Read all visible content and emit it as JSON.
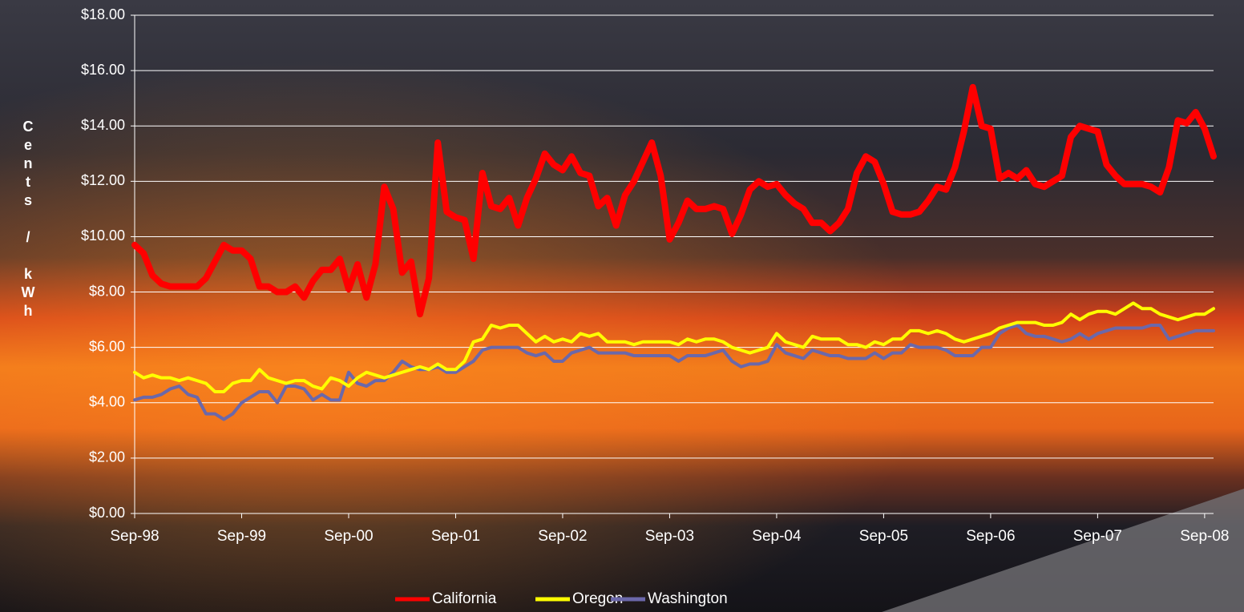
{
  "chart_data": {
    "type": "line",
    "y_label": "Cents / kWh",
    "categories": [
      "Sep-98",
      null,
      null,
      null,
      null,
      null,
      null,
      null,
      null,
      null,
      null,
      null,
      "Sep-99",
      null,
      null,
      null,
      null,
      null,
      null,
      null,
      null,
      null,
      null,
      null,
      "Sep-00",
      null,
      null,
      null,
      null,
      null,
      null,
      null,
      null,
      null,
      null,
      null,
      "Sep-01",
      null,
      null,
      null,
      null,
      null,
      null,
      null,
      null,
      null,
      null,
      null,
      "Sep-02",
      null,
      null,
      null,
      null,
      null,
      null,
      null,
      null,
      null,
      null,
      null,
      "Sep-03",
      null,
      null,
      null,
      null,
      null,
      null,
      null,
      null,
      null,
      null,
      null,
      "Sep-04",
      null,
      null,
      null,
      null,
      null,
      null,
      null,
      null,
      null,
      null,
      null,
      "Sep-05",
      null,
      null,
      null,
      null,
      null,
      null,
      null,
      null,
      null,
      null,
      null,
      "Sep-06",
      null,
      null,
      null,
      null,
      null,
      null,
      null,
      null,
      null,
      null,
      null,
      "Sep-07",
      null,
      null,
      null,
      null,
      null,
      null,
      null,
      null,
      null,
      null,
      null,
      "Sep-08",
      null
    ],
    "series": [
      {
        "name": "California",
        "color": "#ff0000",
        "width": 8,
        "values": [
          9.7,
          9.4,
          8.6,
          8.3,
          8.2,
          8.2,
          8.2,
          8.2,
          8.5,
          9.1,
          9.7,
          9.5,
          9.5,
          9.2,
          8.2,
          8.2,
          8.0,
          8.0,
          8.2,
          7.8,
          8.4,
          8.8,
          8.8,
          9.2,
          8.1,
          9.0,
          7.8,
          9.0,
          11.8,
          11.0,
          8.7,
          9.1,
          7.2,
          8.5,
          13.4,
          10.9,
          10.7,
          10.6,
          9.2,
          12.3,
          11.1,
          11.0,
          11.4,
          10.4,
          11.4,
          12.1,
          13.0,
          12.6,
          12.4,
          12.9,
          12.3,
          12.2,
          11.1,
          11.4,
          10.4,
          11.5,
          12.0,
          12.7,
          13.4,
          12.2,
          9.9,
          10.5,
          11.3,
          11.0,
          11.0,
          11.1,
          11.0,
          10.1,
          10.8,
          11.7,
          12.0,
          11.8,
          11.9,
          11.5,
          11.2,
          11.0,
          10.5,
          10.5,
          10.2,
          10.5,
          11.0,
          12.3,
          12.9,
          12.7,
          11.9,
          10.9,
          10.8,
          10.8,
          10.9,
          11.3,
          11.8,
          11.7,
          12.5,
          13.8,
          15.4,
          14.0,
          13.9,
          12.1,
          12.3,
          12.1,
          12.4,
          11.9,
          11.8,
          12.0,
          12.2,
          13.6,
          14.0,
          13.9,
          13.8,
          12.6,
          12.2,
          11.9,
          11.9,
          11.9,
          11.8,
          11.6,
          12.5,
          14.2,
          14.1,
          14.5,
          13.9,
          12.9
        ]
      },
      {
        "name": "Oregon",
        "color": "#ffff00",
        "width": 4,
        "values": [
          5.1,
          4.9,
          5.0,
          4.9,
          4.9,
          4.8,
          4.9,
          4.8,
          4.7,
          4.4,
          4.4,
          4.7,
          4.8,
          4.8,
          5.2,
          4.9,
          4.8,
          4.7,
          4.8,
          4.8,
          4.6,
          4.5,
          4.9,
          4.8,
          4.6,
          4.9,
          5.1,
          5.0,
          4.9,
          5.0,
          5.1,
          5.2,
          5.3,
          5.2,
          5.4,
          5.2,
          5.2,
          5.5,
          6.2,
          6.3,
          6.8,
          6.7,
          6.8,
          6.8,
          6.5,
          6.2,
          6.4,
          6.2,
          6.3,
          6.2,
          6.5,
          6.4,
          6.5,
          6.2,
          6.2,
          6.2,
          6.1,
          6.2,
          6.2,
          6.2,
          6.2,
          6.1,
          6.3,
          6.2,
          6.3,
          6.3,
          6.2,
          6.0,
          5.9,
          5.8,
          5.9,
          6.0,
          6.5,
          6.2,
          6.1,
          6.0,
          6.4,
          6.3,
          6.3,
          6.3,
          6.1,
          6.1,
          6.0,
          6.2,
          6.1,
          6.3,
          6.3,
          6.6,
          6.6,
          6.5,
          6.6,
          6.5,
          6.3,
          6.2,
          6.3,
          6.4,
          6.5,
          6.7,
          6.8,
          6.9,
          6.9,
          6.9,
          6.8,
          6.8,
          6.9,
          7.2,
          7.0,
          7.2,
          7.3,
          7.3,
          7.2,
          7.4,
          7.6,
          7.4,
          7.4,
          7.2,
          7.1,
          7.0,
          7.1,
          7.2,
          7.2,
          7.4
        ]
      },
      {
        "name": "Washington",
        "color": "#6b68aa",
        "width": 4,
        "values": [
          4.1,
          4.2,
          4.2,
          4.3,
          4.5,
          4.6,
          4.3,
          4.2,
          3.6,
          3.6,
          3.4,
          3.6,
          4.0,
          4.2,
          4.4,
          4.4,
          4.0,
          4.6,
          4.6,
          4.5,
          4.1,
          4.3,
          4.1,
          4.1,
          5.1,
          4.7,
          4.6,
          4.8,
          4.8,
          5.1,
          5.5,
          5.3,
          5.2,
          5.2,
          5.3,
          5.1,
          5.1,
          5.3,
          5.5,
          5.9,
          6.0,
          6.0,
          6.0,
          6.0,
          5.8,
          5.7,
          5.8,
          5.5,
          5.5,
          5.8,
          5.9,
          6.0,
          5.8,
          5.8,
          5.8,
          5.8,
          5.7,
          5.7,
          5.7,
          5.7,
          5.7,
          5.5,
          5.7,
          5.7,
          5.7,
          5.8,
          5.9,
          5.5,
          5.3,
          5.4,
          5.4,
          5.5,
          6.1,
          5.8,
          5.7,
          5.6,
          5.9,
          5.8,
          5.7,
          5.7,
          5.6,
          5.6,
          5.6,
          5.8,
          5.6,
          5.8,
          5.8,
          6.1,
          6.0,
          6.0,
          6.0,
          5.9,
          5.7,
          5.7,
          5.7,
          6.0,
          6.0,
          6.5,
          6.7,
          6.8,
          6.5,
          6.4,
          6.4,
          6.3,
          6.2,
          6.3,
          6.5,
          6.3,
          6.5,
          6.6,
          6.7,
          6.7,
          6.7,
          6.7,
          6.8,
          6.8,
          6.3,
          6.4,
          6.5,
          6.6,
          6.6,
          6.6
        ]
      }
    ],
    "ylim": [
      0,
      18
    ],
    "yticks": [
      {
        "value": 0,
        "label": "$0.00"
      },
      {
        "value": 2,
        "label": "$2.00"
      },
      {
        "value": 4,
        "label": "$4.00"
      },
      {
        "value": 6,
        "label": "$6.00"
      },
      {
        "value": 8,
        "label": "$8.00"
      },
      {
        "value": 10,
        "label": "$10.00"
      },
      {
        "value": 12,
        "label": "$12.00"
      },
      {
        "value": 14,
        "label": "$14.00"
      },
      {
        "value": 16,
        "label": "$16.00"
      },
      {
        "value": 18,
        "label": "$18.00"
      }
    ],
    "grid": true,
    "legend": "bottom"
  }
}
